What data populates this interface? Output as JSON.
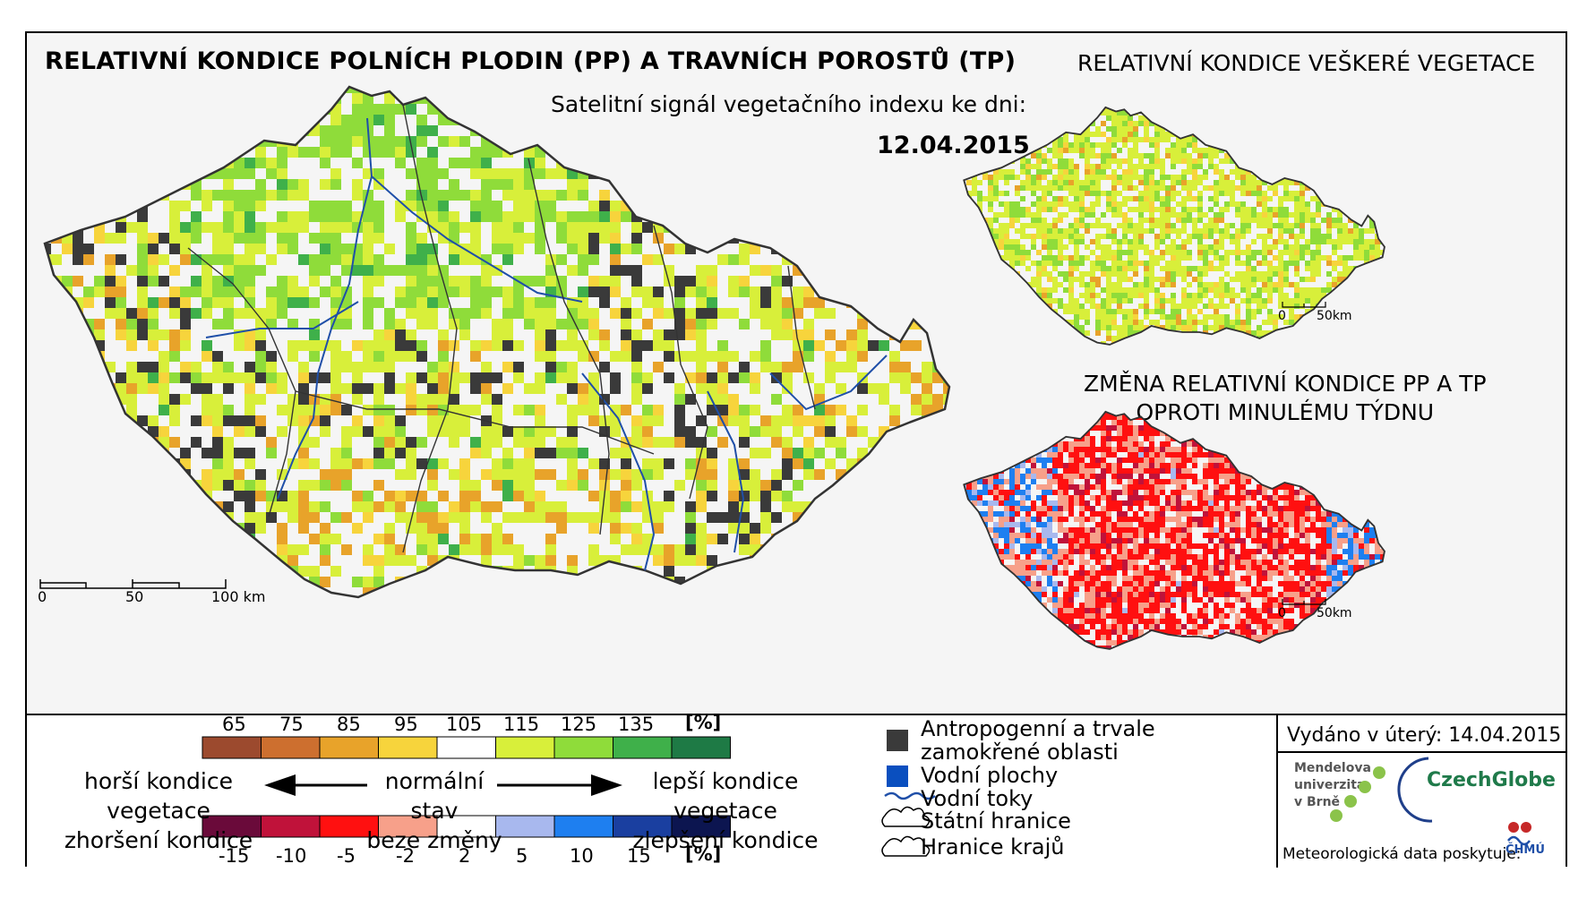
{
  "main_title": "RELATIVNÍ KONDICE POLNÍCH PLODIN (PP) A TRAVNÍCH POROSTŮ (TP)",
  "subtitle": "Satelitní signál vegetačního indexu ke dni:",
  "date": "12.04.2015",
  "vegetation_title": "RELATIVNÍ KONDICE VEŠKERÉ VEGETACE",
  "change_title_line1": "ZMĚNA RELATIVNÍ KONDICE PP A TP",
  "change_title_line2": "OPROTI MINULÉMU TÝDNU",
  "main_scale": {
    "label_0": "0",
    "label_50": "50",
    "label_100": "100 km"
  },
  "small_scale": {
    "label_0": "0",
    "label_50": "50km"
  },
  "condition_scale": {
    "unit": "[%]",
    "ticks": [
      "65",
      "75",
      "85",
      "95",
      "105",
      "115",
      "125",
      "135"
    ],
    "colors": [
      "#9c4a2e",
      "#cd6f2f",
      "#e8a32a",
      "#f7d43c",
      "#ffffff",
      "#d8ef3a",
      "#8fdc3a",
      "#3fb04a",
      "#1e7a45"
    ]
  },
  "change_scale": {
    "unit": "[%]",
    "ticks": [
      "-15",
      "-10",
      "-5",
      "-2",
      "2",
      "5",
      "10",
      "15"
    ],
    "colors": [
      "#6a0a3a",
      "#c0123a",
      "#ff1010",
      "#f7a08a",
      "#ffffff",
      "#a8b8ee",
      "#1e7ff0",
      "#1a3fa0",
      "#0c1550"
    ]
  },
  "legend_text": {
    "worse_1": "horší kondice vegetace",
    "worse_2": "zhoršení kondice",
    "normal_1": "normální stav",
    "normal_2": "beze změny",
    "better_1": "lepší kondice vegetace",
    "better_2": "zlepšení kondice"
  },
  "symbols": {
    "anthropogenic_1": "Antropogenní a trvale",
    "anthropogenic_2": "zamokřené oblasti",
    "water_bodies": "Vodní plochy",
    "rivers": "Vodní toky",
    "state_border": "Státní hranice",
    "region_border": "Hranice krajů"
  },
  "issued": "Vydáno v úterý: 14.04.2015",
  "meteo_credit": "Meteorologická data poskytuje:",
  "logos": {
    "mendel_1": "Mendelova",
    "mendel_2": "univerzita",
    "mendel_3": "v Brně",
    "czechglobe": "CzechGlobe",
    "chmu": "ČHMÚ"
  },
  "colors": {
    "anthropogenic": "#3a3a3a",
    "water": "#0a4fbf",
    "river": "#1f4fa8",
    "border": "#444444"
  }
}
